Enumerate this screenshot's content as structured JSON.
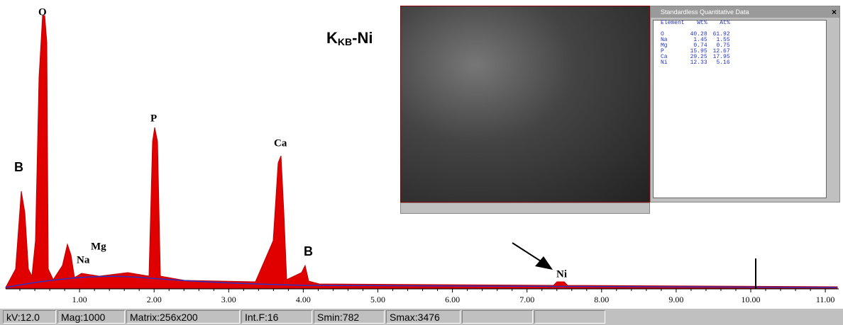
{
  "title": {
    "main": "K",
    "sub": "KB",
    "suffix": "-Ni"
  },
  "spectrum": {
    "xlim": [
      0,
      11.2
    ],
    "xticks": [
      {
        "value": 1,
        "label": "1.00"
      },
      {
        "value": 2,
        "label": "2.00"
      },
      {
        "value": 3,
        "label": "3.00"
      },
      {
        "value": 4,
        "label": "4.00"
      },
      {
        "value": 5,
        "label": "5.00"
      },
      {
        "value": 6,
        "label": "6.00"
      },
      {
        "value": 7,
        "label": "7.00"
      },
      {
        "value": 8,
        "label": "8.00"
      },
      {
        "value": 9,
        "label": "9.00"
      },
      {
        "value": 10,
        "label": "10.00"
      },
      {
        "value": 11,
        "label": "11.00"
      }
    ],
    "peak_labels": [
      "O",
      "B",
      "Na",
      "Mg",
      "P",
      "Ca",
      "B",
      "Ni"
    ]
  },
  "quant_window": {
    "title": "Standardless Quantitative Data",
    "close": "×",
    "header": [
      "Element",
      "Wt%",
      "At%"
    ],
    "rows": [
      [
        "O",
        "40.28",
        "61.92"
      ],
      [
        "Na",
        "1.45",
        "1.55"
      ],
      [
        "Mg",
        "0.74",
        "0.75"
      ],
      [
        "P",
        "15.95",
        "12.67"
      ],
      [
        "Ca",
        "29.25",
        "17.95"
      ],
      [
        "Ni",
        "12.33",
        "5.16"
      ]
    ]
  },
  "status_bar": [
    "kV:12.0",
    "Mag:1000",
    "Matrix:256x200",
    "Int.F:16",
    "Smin:782",
    "Smax:3476"
  ]
}
